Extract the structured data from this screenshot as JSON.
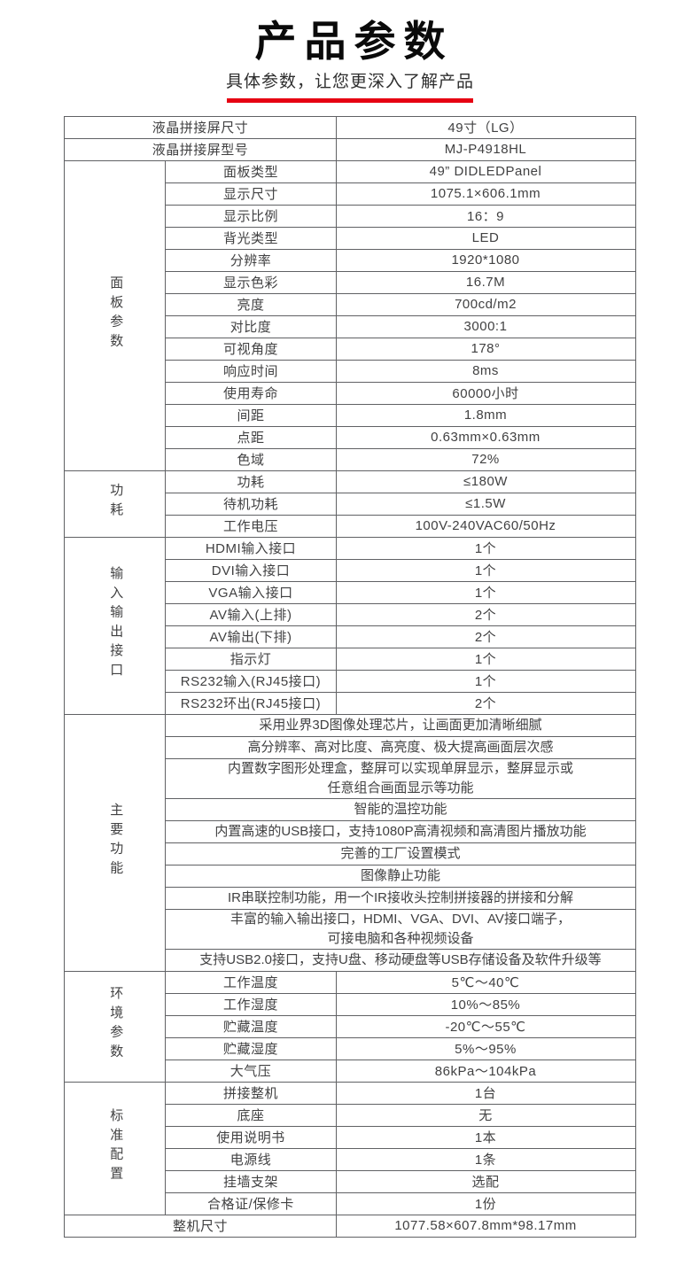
{
  "header": {
    "title": "产品参数",
    "subtitle": "具体参数，让您更深入了解产品",
    "accent_color": "#e60012"
  },
  "table": {
    "top_rows": [
      {
        "label": "液晶拼接屏尺寸",
        "value": "49寸（LG）"
      },
      {
        "label": "液晶拼接屏型号",
        "value": "MJ-P4918HL"
      }
    ],
    "groups": [
      {
        "name": "面板参数",
        "rows": [
          {
            "label": "面板类型",
            "value": "49” DIDLEDPanel"
          },
          {
            "label": "显示尺寸",
            "value": "1075.1×606.1mm"
          },
          {
            "label": "显示比例",
            "value": "16：9"
          },
          {
            "label": "背光类型",
            "value": "LED"
          },
          {
            "label": "分辨率",
            "value": "1920*1080"
          },
          {
            "label": "显示色彩",
            "value": "16.7M"
          },
          {
            "label": "亮度",
            "value": "700cd/m2"
          },
          {
            "label": "对比度",
            "value": "3000:1"
          },
          {
            "label": "可视角度",
            "value": "178°"
          },
          {
            "label": "响应时间",
            "value": "8ms"
          },
          {
            "label": "使用寿命",
            "value": "60000小时"
          },
          {
            "label": "间距",
            "value": "1.8mm"
          },
          {
            "label": "点距",
            "value": "0.63mm×0.63mm"
          },
          {
            "label": "色域",
            "value": "72%"
          }
        ]
      },
      {
        "name": "功耗",
        "rows": [
          {
            "label": "功耗",
            "value": "≤180W"
          },
          {
            "label": "待机功耗",
            "value": "≤1.5W"
          },
          {
            "label": "工作电压",
            "value": "100V-240VAC60/50Hz"
          }
        ]
      },
      {
        "name": "输入输出接口",
        "rows": [
          {
            "label": "HDMI输入接口",
            "value": "1个"
          },
          {
            "label": "DVI输入接口",
            "value": "1个"
          },
          {
            "label": "VGA输入接口",
            "value": "1个"
          },
          {
            "label": "AV输入(上排)",
            "value": "2个"
          },
          {
            "label": "AV输出(下排)",
            "value": "2个"
          },
          {
            "label": "指示灯",
            "value": "1个"
          },
          {
            "label": "RS232输入(RJ45接口)",
            "value": "1个"
          },
          {
            "label": "RS232环出(RJ45接口)",
            "value": "2个"
          }
        ]
      },
      {
        "name": "主要功能",
        "features": [
          "采用业界3D图像处理芯片，让画面更加清晰细腻",
          "高分辨率、高对比度、高亮度、极大提高画面层次感",
          "内置数字图形处理盒，整屏可以实现单屏显示，整屏显示或\n任意组合画面显示等功能",
          "智能的温控功能",
          "内置高速的USB接口，支持1080P高清视频和高清图片播放功能",
          "完善的工厂设置模式",
          "图像静止功能",
          "IR串联控制功能，用一个IR接收头控制拼接器的拼接和分解",
          "丰富的输入输出接口，HDMI、VGA、DVI、AV接口端子，\n可接电脑和各种视频设备",
          "支持USB2.0接口，支持U盘、移动硬盘等USB存储设备及软件升级等"
        ]
      },
      {
        "name": "环境参数",
        "rows": [
          {
            "label": "工作温度",
            "value": "5℃～40℃"
          },
          {
            "label": "工作湿度",
            "value": "10%～85%"
          },
          {
            "label": "贮藏温度",
            "value": "-20℃～55℃"
          },
          {
            "label": "贮藏湿度",
            "value": "5%～95%"
          },
          {
            "label": "大气压",
            "value": "86kPa～104kPa"
          }
        ]
      },
      {
        "name": "标准配置",
        "rows": [
          {
            "label": "拼接整机",
            "value": "1台"
          },
          {
            "label": "底座",
            "value": "无"
          },
          {
            "label": "使用说明书",
            "value": "1本"
          },
          {
            "label": "电源线",
            "value": "1条"
          },
          {
            "label": "挂墙支架",
            "value": "选配"
          },
          {
            "label": "合格证/保修卡",
            "value": "1份"
          }
        ]
      }
    ],
    "bottom_row": {
      "label": "整机尺寸",
      "value": "1077.58×607.8mm*98.17mm"
    }
  }
}
